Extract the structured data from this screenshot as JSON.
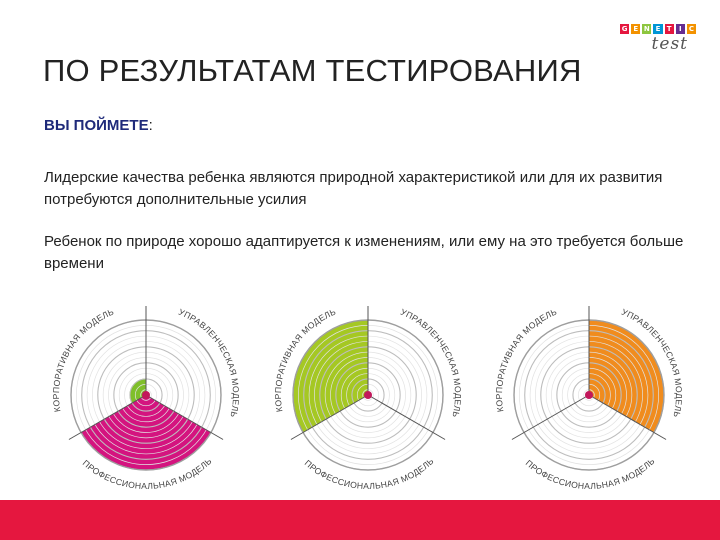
{
  "logo": {
    "letters": [
      "G",
      "E",
      "N",
      "E",
      "T",
      "I",
      "C"
    ],
    "colors": [
      "#e5173f",
      "#f39200",
      "#8dc63f",
      "#0096d6",
      "#e5173f",
      "#662d91",
      "#f39200"
    ],
    "sub": "test"
  },
  "title": "ПО РЕЗУЛЬТАТАМ ТЕСТИРОВАНИЯ",
  "subhead": "ВЫ ПОЙМЕТЕ",
  "subhead_colon": ":",
  "paragraphs": [
    "Лидерские качества ребенка являются природной характеристикой или для их развития потребуются дополнительные усилия",
    "Ребенок  по природе хорошо адаптируется к изменениям, или ему на это требуется больше времени"
  ],
  "diagram_labels": {
    "corporate": "КОРПОРАТИВНАЯ МОДЕЛЬ",
    "managerial": "УПРАВЛЕНЧЕСКАЯ МОДЕЛЬ",
    "professional": "ПРОФЕССИОНАЛЬНАЯ МОДЕЛЬ"
  },
  "colors": {
    "accent_red": "#e5173f",
    "magenta": "#d4147f",
    "lime": "#a5c823",
    "orange": "#f08c1e",
    "small_green": "#7fbf2a",
    "ring": "#d9d9d9",
    "center_dot": "#c2185b"
  },
  "diagrams": [
    {
      "fills": [
        {
          "sector": "corporate",
          "level": 0.22,
          "color": "#7fbf2a"
        },
        {
          "sector": "professional",
          "level": 1.0,
          "color": "#d4147f"
        }
      ]
    },
    {
      "fills": [
        {
          "sector": "corporate",
          "level": 1.0,
          "color": "#a5c823"
        }
      ]
    },
    {
      "fills": [
        {
          "sector": "managerial",
          "level": 1.0,
          "color": "#f08c1e"
        }
      ]
    }
  ]
}
